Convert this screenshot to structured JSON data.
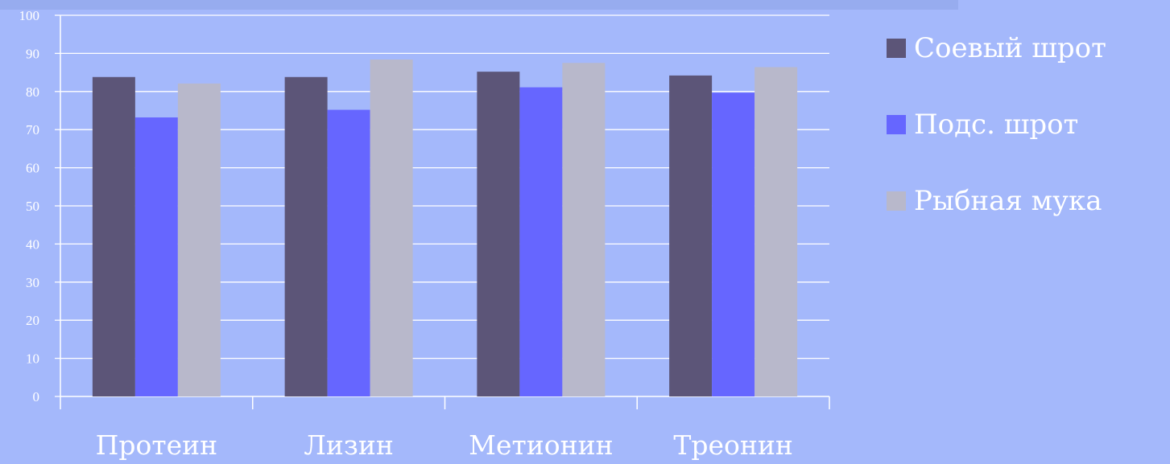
{
  "chart_data": {
    "type": "bar",
    "categories": [
      "Протеин",
      "Лизин",
      "Метионин",
      "Треонин"
    ],
    "series": [
      {
        "name": "Соевый шрот",
        "color": "#5c5578",
        "values": [
          83.8,
          83.8,
          85.2,
          84.2
        ]
      },
      {
        "name": "Подс. шрот",
        "color": "#6666ff",
        "values": [
          73.2,
          75.2,
          81.1,
          79.7
        ]
      },
      {
        "name": "Рыбная мука",
        "color": "#b8b8cb",
        "values": [
          82.1,
          88.4,
          87.5,
          86.4
        ]
      }
    ],
    "ylim": [
      0,
      100
    ],
    "yticks": [
      "0",
      "10",
      "20",
      "30",
      "40",
      "50",
      "60",
      "70",
      "80",
      "90",
      "100"
    ],
    "grid": true,
    "legend_position": "right",
    "title": "",
    "xlabel": "",
    "ylabel": ""
  }
}
